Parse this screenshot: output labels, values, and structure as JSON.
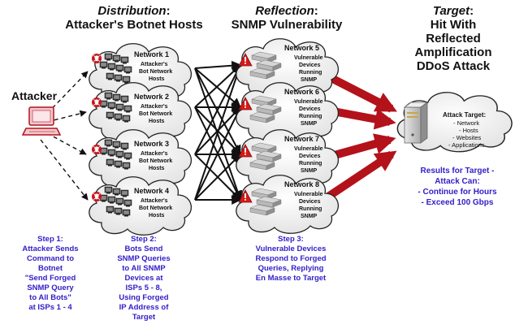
{
  "headers": {
    "distribution_title": "Distribution",
    "distribution_sub": "Attacker's Botnet Hosts",
    "reflection_title": "Reflection",
    "reflection_sub": "SNMP Vulnerability",
    "target_title": "Target",
    "target_line1": "Hit With",
    "target_line2": "Reflected",
    "target_line3": "Amplification",
    "target_line4": "DDoS Attack",
    "colon": ":"
  },
  "attacker": {
    "label": "Attacker"
  },
  "botnets": [
    {
      "name": "Network 1",
      "l1": "Attacker's",
      "l2": "Bot Network",
      "l3": "Hosts"
    },
    {
      "name": "Network 2",
      "l1": "Attacker's",
      "l2": "Bot Network",
      "l3": "Hosts"
    },
    {
      "name": "Network 3",
      "l1": "Attacker's",
      "l2": "Bot Network",
      "l3": "Hosts"
    },
    {
      "name": "Network 4",
      "l1": "Attacker's",
      "l2": "Bot Network",
      "l3": "Hosts"
    }
  ],
  "reflectors": [
    {
      "name": "Network 5",
      "l1": "Vulnerable",
      "l2": "Devices",
      "l3": "Running",
      "l4": "SNMP"
    },
    {
      "name": "Network 6",
      "l1": "Vulnerable",
      "l2": "Devices",
      "l3": "Running",
      "l4": "SNMP"
    },
    {
      "name": "Network 7",
      "l1": "Vulnerable",
      "l2": "Devices",
      "l3": "Running",
      "l4": "SNMP"
    },
    {
      "name": "Network 8",
      "l1": "Vulnerable",
      "l2": "Devices",
      "l3": "Running",
      "l4": "SNMP"
    }
  ],
  "target": {
    "title": "Attack Target:",
    "items": [
      "- Network",
      "- Hosts",
      "- Websites",
      "- Applications"
    ]
  },
  "results": {
    "l1": "Results for Target -",
    "l2": "Attack Can:",
    "l3": "- Continue for Hours",
    "l4": "- Exceed 100 Gbps"
  },
  "steps": {
    "step1": [
      "Step 1:",
      "Attacker Sends",
      "Command to",
      "Botnet",
      "\"Send Forged",
      "SNMP Query",
      "to All Bots\"",
      "at ISPs 1 - 4"
    ],
    "step2": [
      "Step 2:",
      "Bots Send",
      "SNMP Queries",
      "to All SNMP",
      "Devices at",
      "ISPs 5 - 8,",
      "Using Forged",
      "IP Address of",
      "Target"
    ],
    "step3": [
      "Step 3:",
      "Vulnerable Devices",
      "Respond to Forged",
      "Queries, Replying",
      "En Masse to Target"
    ]
  },
  "colors": {
    "arrow_red": "#b3121a",
    "step_blue": "#3320c8",
    "warning_red": "#d41a1a",
    "cloud_stroke": "#222222"
  }
}
